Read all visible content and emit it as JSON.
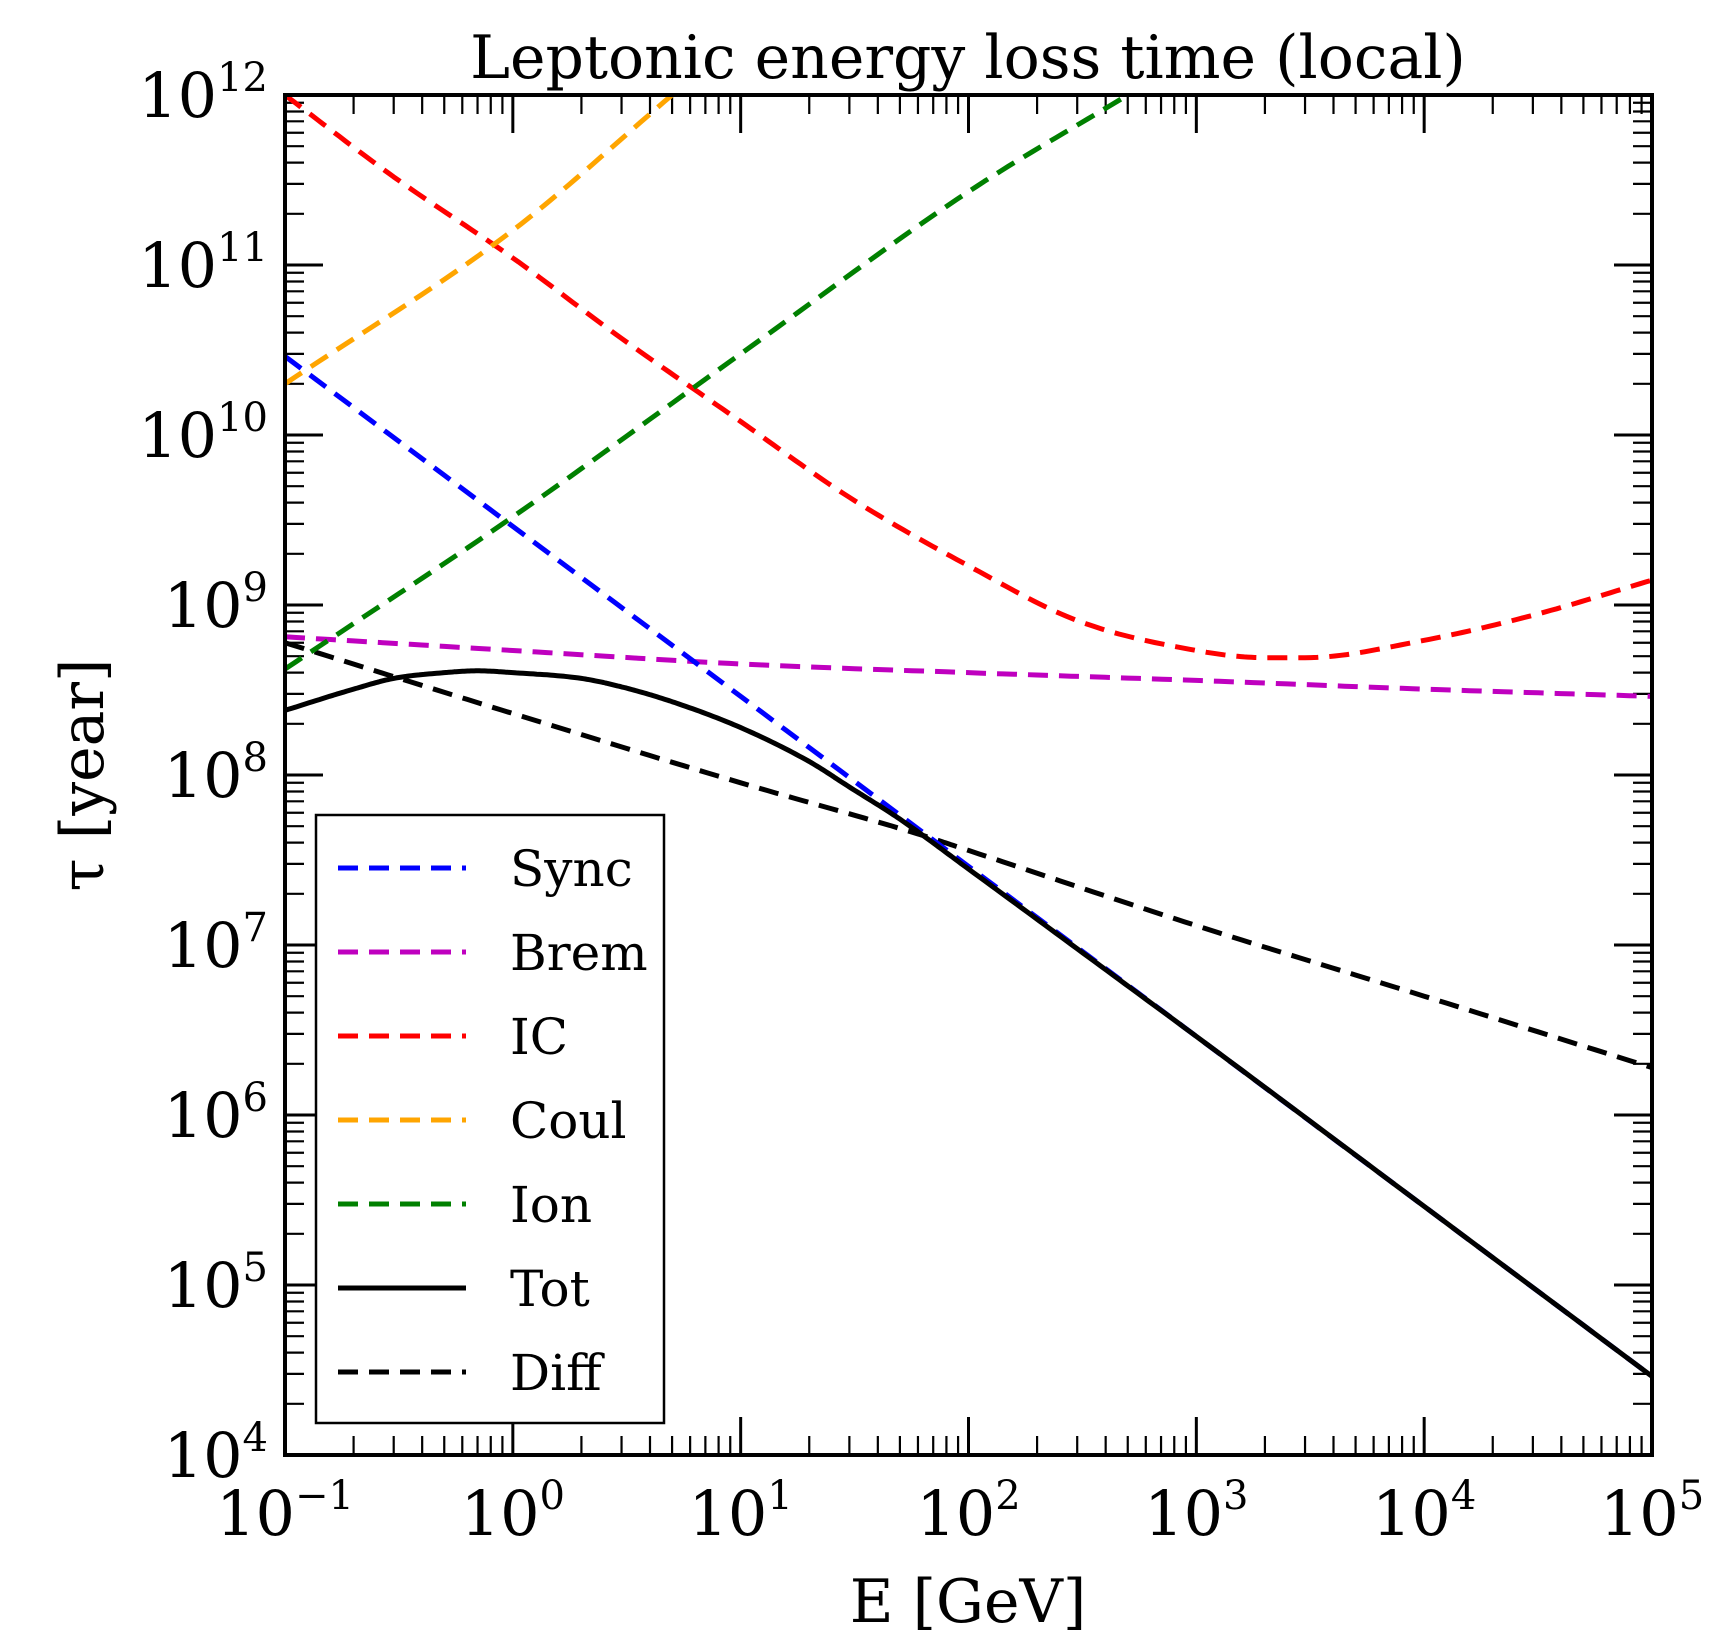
{
  "chart_data": {
    "type": "line",
    "title": "Leptonic energy loss time (local)",
    "xlabel": "E [GeV]",
    "ylabel": "τ [year]",
    "xscale": "log",
    "yscale": "log",
    "xlim": [
      0.1,
      100000
    ],
    "ylim": [
      10000,
      1000000000000
    ],
    "x_ticks": [
      {
        "base": "10",
        "exp": "−1"
      },
      {
        "base": "10",
        "exp": "0"
      },
      {
        "base": "10",
        "exp": "1"
      },
      {
        "base": "10",
        "exp": "2"
      },
      {
        "base": "10",
        "exp": "3"
      },
      {
        "base": "10",
        "exp": "4"
      },
      {
        "base": "10",
        "exp": "5"
      }
    ],
    "y_ticks": [
      {
        "base": "10",
        "exp": "4"
      },
      {
        "base": "10",
        "exp": "5"
      },
      {
        "base": "10",
        "exp": "6"
      },
      {
        "base": "10",
        "exp": "7"
      },
      {
        "base": "10",
        "exp": "8"
      },
      {
        "base": "10",
        "exp": "9"
      },
      {
        "base": "10",
        "exp": "10"
      },
      {
        "base": "10",
        "exp": "11"
      },
      {
        "base": "10",
        "exp": "12"
      }
    ],
    "legend_position": "lower-left",
    "series": [
      {
        "name": "Sync",
        "color": "#0000ff",
        "style": "dashed",
        "x": [
          0.1,
          1,
          10,
          100,
          1000,
          10000,
          100000
        ],
        "y": [
          29000000000,
          2900000000,
          290000000,
          29000000,
          2900000,
          290000,
          29000
        ]
      },
      {
        "name": "Brem",
        "color": "#bf00bf",
        "style": "dashed",
        "x": [
          0.1,
          1,
          10,
          100,
          1000,
          10000,
          100000
        ],
        "y": [
          650000000,
          540000000,
          450000000,
          400000000,
          360000000,
          320000000,
          290000000
        ]
      },
      {
        "name": "IC",
        "color": "#ff0000",
        "style": "dashed",
        "x": [
          0.1,
          0.3,
          1,
          3,
          10,
          30,
          100,
          300,
          1000,
          2000,
          3000,
          10000,
          30000,
          100000
        ],
        "y": [
          1000000000000,
          330000000000,
          110000000000,
          37000000000,
          12000000000,
          4300000000,
          1700000000,
          810000000,
          540000000,
          490000000,
          490000000,
          620000000,
          870000000,
          1400000000
        ]
      },
      {
        "name": "Coul",
        "color": "#ffa500",
        "style": "dashed",
        "x": [
          0.1,
          1,
          5
        ],
        "y": [
          20000000000,
          160000000000,
          1000000000000
        ]
      },
      {
        "name": "Ion",
        "color": "#008000",
        "style": "dashed",
        "x": [
          0.1,
          1,
          10,
          100,
          500
        ],
        "y": [
          420000000,
          3300000000,
          30000000000,
          270000000000,
          1000000000000
        ]
      },
      {
        "name": "Tot",
        "color": "#000000",
        "style": "solid",
        "x": [
          0.1,
          0.2,
          0.3,
          0.5,
          0.7,
          1,
          2,
          3,
          5,
          10,
          20,
          30,
          50,
          100,
          300,
          1000,
          10000,
          100000
        ],
        "y": [
          240000000,
          320000000,
          370000000,
          400000000,
          410000000,
          400000000,
          370000000,
          330000000,
          270000000,
          190000000,
          120000000,
          85000000,
          55000000,
          28000000,
          9500000,
          2900000,
          290000,
          29000
        ]
      },
      {
        "name": "Diff",
        "color": "#000000",
        "style": "dashed",
        "x": [
          0.1,
          1,
          10,
          60,
          100,
          1000,
          10000,
          100000
        ],
        "y": [
          600000000,
          230000000,
          90000000,
          45000000,
          36000000,
          13000000,
          5000000,
          1900000
        ]
      }
    ]
  }
}
